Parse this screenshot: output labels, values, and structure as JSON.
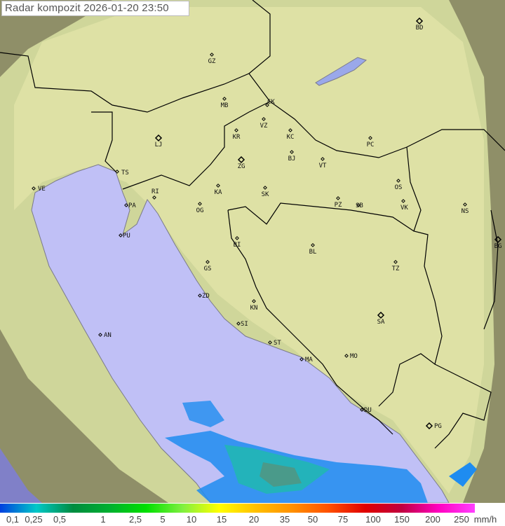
{
  "title": "Radar kompozit  2026-01-20   23:50",
  "map": {
    "colors": {
      "sea": "#c0c0f6",
      "land": "#dfe2a6",
      "outside": "#8f8f68",
      "border": "#000000",
      "coast": "#7a7a8a",
      "precip_light": "#1e8cf0",
      "precip_mid": "#20b8b0"
    },
    "cities": [
      {
        "code": "BD"
      },
      {
        "code": "GZ"
      },
      {
        "code": "MB"
      },
      {
        "code": "CK"
      },
      {
        "code": "VZ"
      },
      {
        "code": "KR"
      },
      {
        "code": "KC"
      },
      {
        "code": "LJ"
      },
      {
        "code": "PC"
      },
      {
        "code": "TS"
      },
      {
        "code": "VE"
      },
      {
        "code": "ZG"
      },
      {
        "code": "BJ"
      },
      {
        "code": "VT"
      },
      {
        "code": "KA"
      },
      {
        "code": "SK"
      },
      {
        "code": "OS"
      },
      {
        "code": "RI"
      },
      {
        "code": "PA"
      },
      {
        "code": "OG"
      },
      {
        "code": "PZ"
      },
      {
        "code": "SB"
      },
      {
        "code": "VK"
      },
      {
        "code": "NS"
      },
      {
        "code": "PU"
      },
      {
        "code": "BG"
      },
      {
        "code": "BI"
      },
      {
        "code": "BL"
      },
      {
        "code": "GS"
      },
      {
        "code": "TZ"
      },
      {
        "code": "ZD"
      },
      {
        "code": "KN"
      },
      {
        "code": "SA"
      },
      {
        "code": "SI"
      },
      {
        "code": "AN"
      },
      {
        "code": "ST"
      },
      {
        "code": "MA"
      },
      {
        "code": "MO"
      },
      {
        "code": "DU"
      },
      {
        "code": "PG"
      }
    ]
  },
  "legend": {
    "unit": "mm/h",
    "labels": [
      "0,1",
      "0,25",
      "0,5",
      "1",
      "2,5",
      "5",
      "10",
      "15",
      "20",
      "35",
      "50",
      "75",
      "100",
      "150",
      "200",
      "250"
    ],
    "gradient": [
      "#0040e0",
      "#00c8c8",
      "#008c40",
      "#00b030",
      "#00e000",
      "#80f040",
      "#ffff00",
      "#ffc000",
      "#ff9000",
      "#ff5000",
      "#e00000",
      "#c00040",
      "#ff00c0",
      "#ff40ff"
    ]
  }
}
